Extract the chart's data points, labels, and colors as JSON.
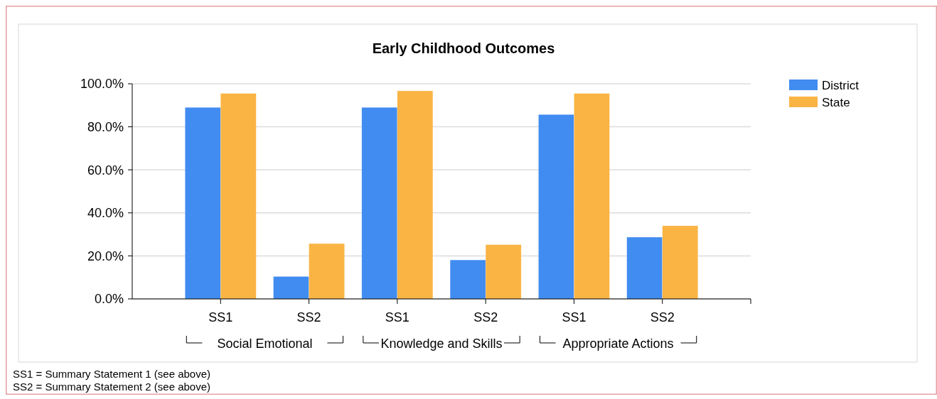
{
  "chart_data": {
    "type": "bar",
    "title": "Early Childhood Outcomes",
    "categories": [
      "SS1",
      "SS2",
      "SS1",
      "SS2",
      "SS1",
      "SS2"
    ],
    "series": [
      {
        "name": "District",
        "color": "#418cf0",
        "values": [
          89.0,
          10.4,
          89.0,
          18.1,
          85.7,
          28.7
        ]
      },
      {
        "name": "State",
        "color": "#fab444",
        "values": [
          95.5,
          25.7,
          96.7,
          25.2,
          95.5,
          34.0
        ]
      }
    ],
    "ylim": [
      0,
      100
    ],
    "yticks": [
      {
        "value": 0,
        "label": "0.0%"
      },
      {
        "value": 20,
        "label": "20.0%"
      },
      {
        "value": 40,
        "label": "40.0%"
      },
      {
        "value": 60,
        "label": "60.0%"
      },
      {
        "value": 80,
        "label": "80.0%"
      },
      {
        "value": 100,
        "label": "100.0%"
      }
    ],
    "grid": "y",
    "legend": "top right",
    "annotations": [
      "Social Emotional",
      "Knowledge and Skills",
      "Appropriate Actions",
      "SS1 = Summary Statement 1 (see above)",
      "SS2 = Summary Statement 2 (see above)"
    ]
  }
}
